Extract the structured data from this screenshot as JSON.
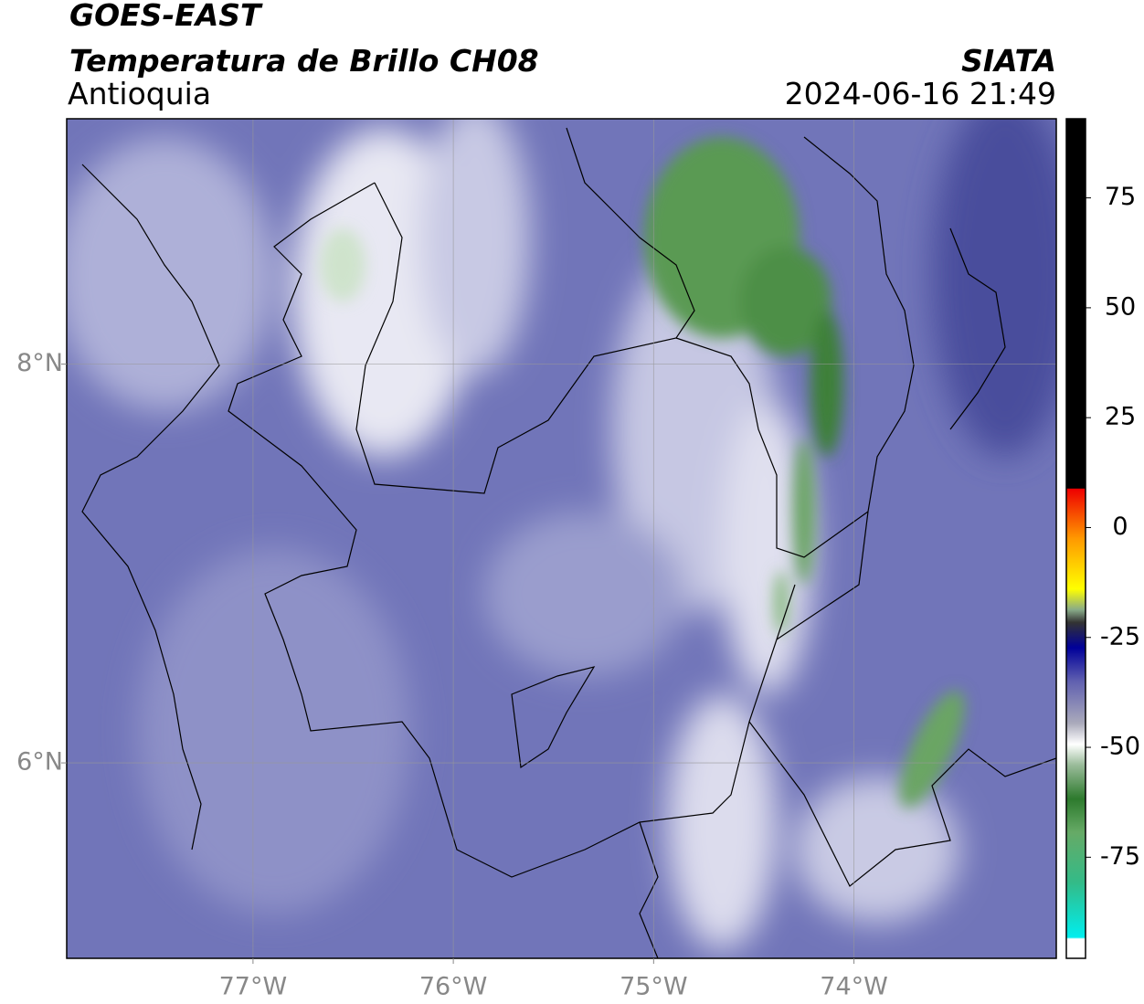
{
  "header": {
    "title": "GOES-EAST",
    "subtitle": "Temperatura de Brillo CH08",
    "region": "Antioquia",
    "source": "SIATA",
    "datetime": "2024-06-16 21:49"
  },
  "map": {
    "xlim": [
      -77.93,
      -72.99
    ],
    "ylim": [
      5.02,
      9.23
    ],
    "xticks": [
      {
        "value": -77,
        "label": "77°W"
      },
      {
        "value": -76,
        "label": "76°W"
      },
      {
        "value": -75,
        "label": "75°W"
      },
      {
        "value": -74,
        "label": "74°W"
      }
    ],
    "yticks": [
      {
        "value": 6,
        "label": "6°N"
      },
      {
        "value": 8,
        "label": "8°N"
      }
    ],
    "grid": true
  },
  "colorbar": {
    "lim": [
      -98,
      93
    ],
    "ticks": [
      -75,
      -50,
      -25,
      0,
      25,
      50,
      75
    ]
  }
}
